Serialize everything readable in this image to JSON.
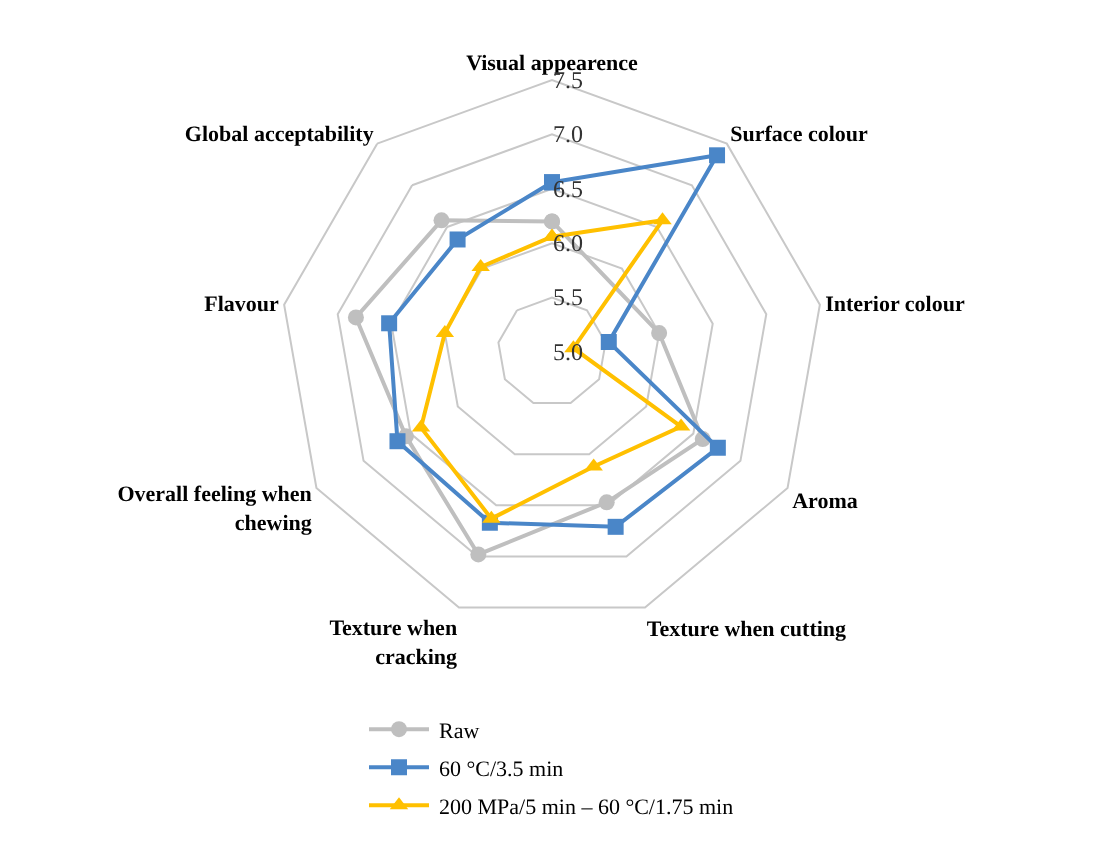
{
  "chart_data": {
    "type": "radar",
    "categories": [
      "Visual appearence",
      "Surface colour",
      "Interior colour",
      "Aroma",
      "Texture when cutting",
      "Texture when cracking",
      "Overall feeling when chewing",
      "Flavour",
      "Global acceptability"
    ],
    "series": [
      {
        "name": "Raw",
        "color": "#bfbfbf",
        "marker": "circle",
        "values": [
          6.2,
          null,
          6.0,
          6.6,
          6.47,
          6.98,
          6.55,
          6.83,
          6.58
        ]
      },
      {
        "name": "60 °C/3.5 min",
        "color": "#4a86c8",
        "marker": "square",
        "values": [
          6.56,
          7.36,
          5.53,
          6.76,
          6.71,
          6.67,
          6.64,
          6.52,
          6.35
        ]
      },
      {
        "name": "200 MPa/5 min – 60 °C/1.75 min",
        "color": "#ffc000",
        "marker": "triangle",
        "values": [
          6.06,
          6.58,
          5.2,
          6.37,
          6.12,
          6.63,
          6.39,
          6.0,
          6.02
        ]
      }
    ],
    "ylim": [
      5.0,
      7.5
    ],
    "yticks": [
      {
        "value": 5.0,
        "label": "5.0"
      },
      {
        "value": 5.5,
        "label": "5.5"
      },
      {
        "value": 6.0,
        "label": "6.0"
      },
      {
        "value": 6.5,
        "label": "6.5"
      },
      {
        "value": 7.0,
        "label": "7.0"
      },
      7.5
    ],
    "grid": true,
    "legend": "bottom",
    "line_style": "solid"
  }
}
